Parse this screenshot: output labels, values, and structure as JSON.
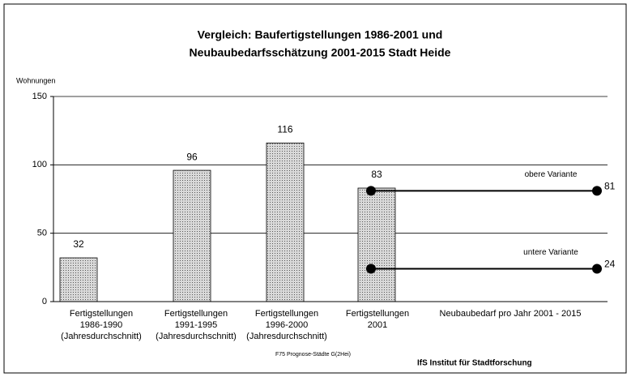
{
  "chart_data": {
    "type": "bar",
    "title": [
      "Vergleich: Baufertigstellungen 1986-2001 und",
      "Neubaubedarfsschätzung 2001-2015 Stadt Heide"
    ],
    "y_label": "Wohnungen",
    "categories": [
      [
        "Fertigstellungen",
        "1986-1990",
        "(Jahresdurchschnitt)"
      ],
      [
        "Fertigstellungen",
        "1991-1995",
        "(Jahresdurchschnitt)"
      ],
      [
        "Fertigstellungen",
        "1996-2000",
        "(Jahresdurchschnitt)"
      ],
      [
        "Fertigstellungen",
        "2001"
      ],
      [
        "Neubaubedarf pro  Jahr 2001 - 2015"
      ]
    ],
    "values": [
      32,
      96,
      116,
      83,
      null
    ],
    "color": "#d9d9d9",
    "reference_lines": [
      {
        "name": "obere Variante",
        "value": 81
      },
      {
        "name": "untere Variante",
        "value": 24
      }
    ],
    "ylim": [
      0,
      150
    ],
    "yticks": [
      0,
      50,
      100,
      150
    ],
    "grid": true,
    "footer": [
      "F75 Prognose-Städte  G(2Hei)",
      "IfS Institut für Stadtforschung"
    ]
  }
}
